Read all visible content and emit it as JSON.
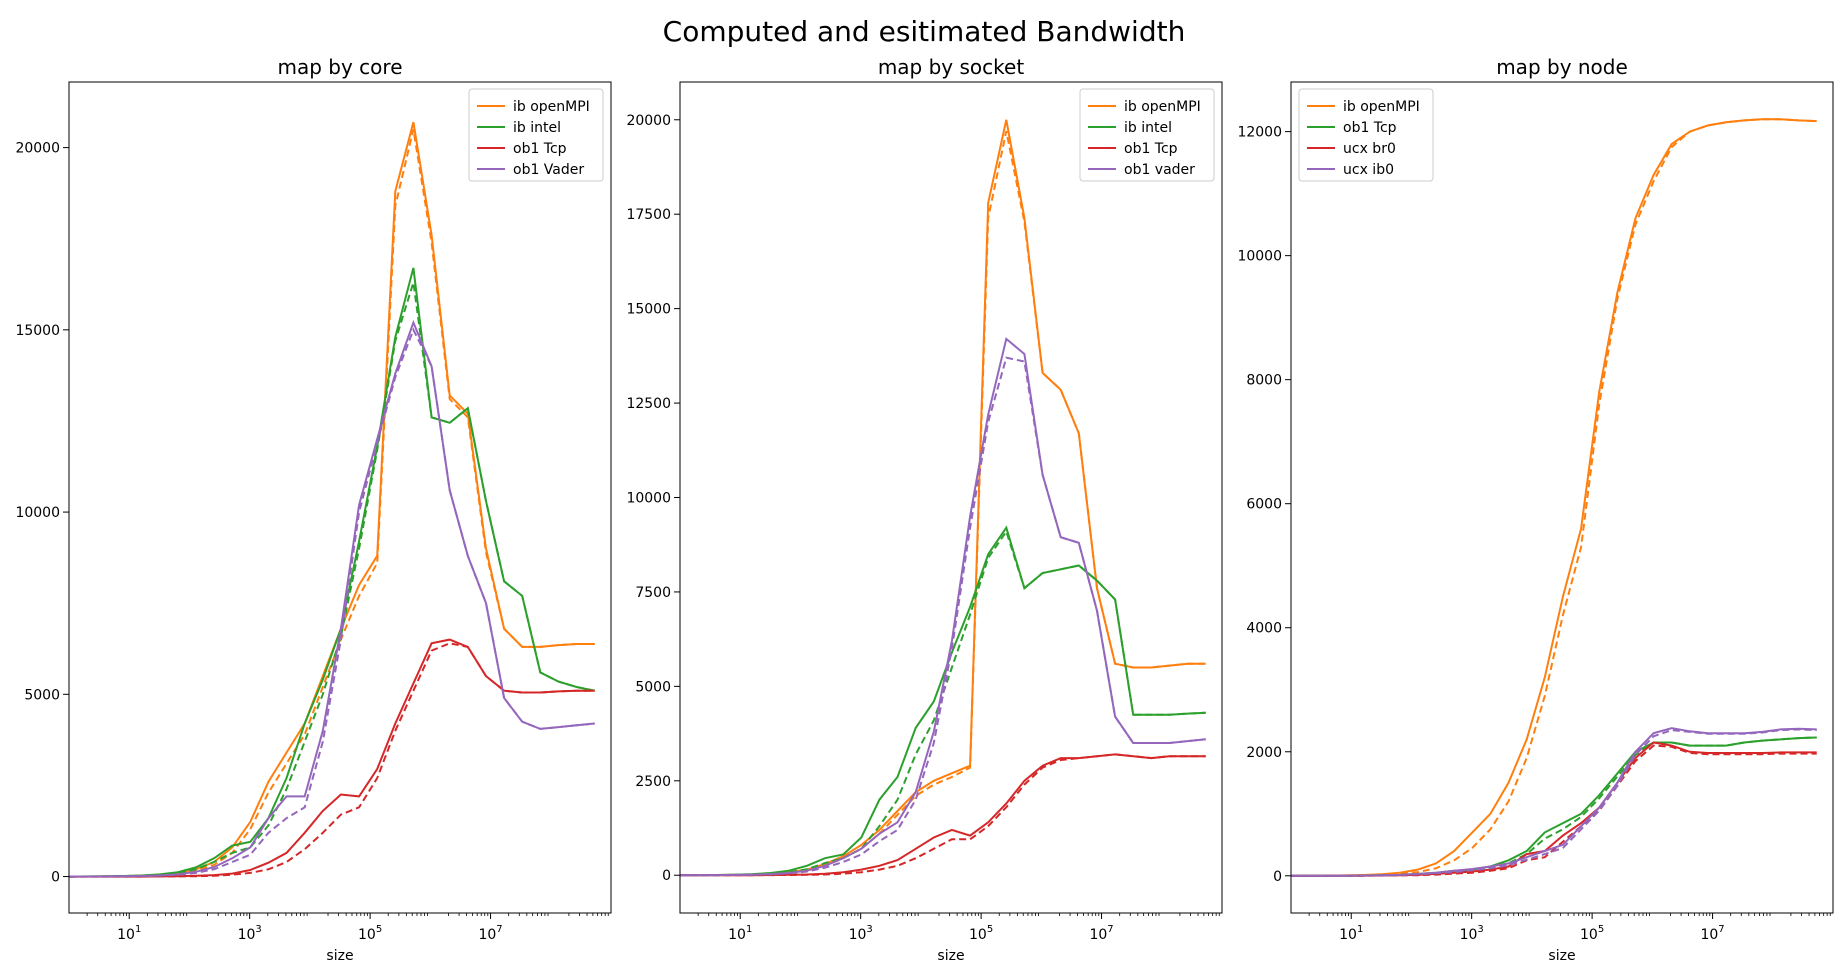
{
  "figure": {
    "title": "Computed and esitimated Bandwidth"
  },
  "chart_data": [
    {
      "type": "line",
      "title": "map by core",
      "xlabel": "size",
      "ylabel": "",
      "xscale": "log",
      "xlim": [
        1,
        1000000000
      ],
      "ylim": [
        -1000,
        21800
      ],
      "xticks": [
        {
          "value": 10,
          "base": "10",
          "exp": "1"
        },
        {
          "value": 1000,
          "base": "10",
          "exp": "3"
        },
        {
          "value": 100000,
          "base": "10",
          "exp": "5"
        },
        {
          "value": 10000000,
          "base": "10",
          "exp": "7"
        }
      ],
      "yticks": [
        0,
        5000,
        10000,
        15000,
        20000
      ],
      "legend_position": "top-right",
      "line_styles": "solid = computed, dashed = estimated",
      "x": [
        1,
        2,
        4,
        8,
        16,
        32,
        64,
        128,
        256,
        512,
        1024,
        2048,
        4096,
        8192,
        16384,
        32768,
        65536,
        131072,
        262144,
        524288,
        1048576,
        2097152,
        4194304,
        8388608,
        16777216,
        33554432,
        67108864,
        134217728,
        268435456,
        536870912
      ],
      "series": [
        {
          "name": "ib openMPI",
          "color": "#ff7f0e",
          "values": [
            0,
            2,
            5,
            12,
            25,
            50,
            100,
            200,
            400,
            800,
            1500,
            2600,
            3400,
            4200,
            5500,
            6800,
            8000,
            8800,
            18800,
            20700,
            17600,
            13200,
            12700,
            9000,
            6800,
            6300,
            6300,
            6350,
            6380,
            6380
          ],
          "estimated": [
            0,
            2,
            4,
            10,
            20,
            40,
            80,
            160,
            320,
            650,
            1300,
            2300,
            3100,
            3900,
            5200,
            6500,
            7700,
            8600,
            18400,
            20500,
            17400,
            13100,
            12600,
            8900,
            6800,
            6300,
            6300,
            6350,
            6380,
            6380
          ]
        },
        {
          "name": "ib intel",
          "color": "#2ca02c",
          "values": [
            0,
            3,
            6,
            15,
            30,
            60,
            120,
            250,
            500,
            850,
            950,
            1600,
            2700,
            4200,
            5400,
            6800,
            9200,
            11800,
            14800,
            16700,
            12600,
            12450,
            12850,
            10300,
            8100,
            7700,
            5600,
            5350,
            5200,
            5100
          ],
          "estimated": [
            0,
            2,
            5,
            12,
            25,
            50,
            100,
            200,
            400,
            650,
            800,
            1400,
            2400,
            3700,
            5000,
            6600,
            9000,
            11700,
            14700,
            16300,
            12600,
            12450,
            12850,
            10300,
            8100,
            7700,
            5600,
            5350,
            5200,
            5100
          ]
        },
        {
          "name": "ob1 Tcp",
          "color": "#d62728",
          "values": [
            0,
            0,
            0,
            0,
            0,
            5,
            10,
            20,
            40,
            80,
            180,
            380,
            650,
            1200,
            1800,
            2250,
            2200,
            2950,
            4200,
            5300,
            6400,
            6500,
            6300,
            5500,
            5100,
            5050,
            5050,
            5080,
            5100,
            5100
          ],
          "estimated": [
            0,
            0,
            0,
            0,
            0,
            3,
            5,
            10,
            20,
            50,
            100,
            200,
            400,
            750,
            1200,
            1700,
            1900,
            2700,
            4000,
            5100,
            6200,
            6400,
            6300,
            5500,
            5100,
            5050,
            5050,
            5080,
            5100,
            5100
          ]
        },
        {
          "name": "ob1 Vader",
          "color": "#9467bd",
          "values": [
            0,
            1,
            3,
            8,
            15,
            30,
            60,
            130,
            260,
            500,
            800,
            1600,
            2200,
            2200,
            4000,
            6800,
            10200,
            12000,
            13800,
            15200,
            14000,
            10600,
            8800,
            7500,
            4900,
            4250,
            4050,
            4100,
            4150,
            4200
          ],
          "estimated": [
            0,
            1,
            2,
            6,
            12,
            25,
            50,
            100,
            200,
            400,
            600,
            1200,
            1600,
            1900,
            3700,
            6500,
            10000,
            11900,
            13700,
            15000,
            14000,
            10600,
            8800,
            7500,
            4900,
            4250,
            4050,
            4100,
            4150,
            4200
          ]
        }
      ]
    },
    {
      "type": "line",
      "title": "map by socket",
      "xlabel": "size",
      "ylabel": "",
      "xscale": "log",
      "xlim": [
        1,
        1000000000
      ],
      "ylim": [
        -1000,
        21000
      ],
      "xticks": [
        {
          "value": 10,
          "base": "10",
          "exp": "1"
        },
        {
          "value": 1000,
          "base": "10",
          "exp": "3"
        },
        {
          "value": 100000,
          "base": "10",
          "exp": "5"
        },
        {
          "value": 10000000,
          "base": "10",
          "exp": "7"
        }
      ],
      "yticks": [
        0,
        2500,
        5000,
        7500,
        10000,
        12500,
        15000,
        17500,
        20000
      ],
      "legend_position": "top-right",
      "line_styles": "solid = computed, dashed = estimated",
      "x": [
        1,
        2,
        4,
        8,
        16,
        32,
        64,
        128,
        256,
        512,
        1024,
        2048,
        4096,
        8192,
        16384,
        32768,
        65536,
        131072,
        262144,
        524288,
        1048576,
        2097152,
        4194304,
        8388608,
        16777216,
        33554432,
        67108864,
        134217728,
        268435456,
        536870912
      ],
      "series": [
        {
          "name": "ib openMPI",
          "color": "#ff7f0e",
          "values": [
            0,
            2,
            5,
            10,
            20,
            40,
            80,
            150,
            300,
            500,
            800,
            1200,
            1700,
            2200,
            2500,
            2700,
            2900,
            17800,
            20000,
            17400,
            13300,
            12850,
            11700,
            7600,
            5600,
            5500,
            5500,
            5550,
            5600,
            5600
          ],
          "estimated": [
            0,
            2,
            4,
            8,
            16,
            32,
            60,
            120,
            250,
            450,
            700,
            1100,
            1600,
            2100,
            2400,
            2600,
            2850,
            17400,
            19700,
            17300,
            13300,
            12850,
            11700,
            7600,
            5600,
            5500,
            5500,
            5550,
            5600,
            5600
          ]
        },
        {
          "name": "ib intel",
          "color": "#2ca02c",
          "values": [
            0,
            3,
            6,
            15,
            30,
            60,
            120,
            250,
            450,
            550,
            1000,
            2000,
            2600,
            3900,
            4600,
            5900,
            7100,
            8500,
            9200,
            7600,
            8000,
            8100,
            8200,
            7800,
            7300,
            4250,
            4250,
            4250,
            4280,
            4300
          ],
          "estimated": [
            0,
            2,
            4,
            10,
            20,
            40,
            80,
            160,
            320,
            450,
            700,
            1300,
            2000,
            3200,
            4100,
            5500,
            6900,
            8400,
            9100,
            7600,
            8000,
            8100,
            8200,
            7800,
            7300,
            4250,
            4250,
            4250,
            4280,
            4300
          ]
        },
        {
          "name": "ob1 Tcp",
          "color": "#d62728",
          "values": [
            0,
            0,
            0,
            0,
            0,
            5,
            10,
            20,
            40,
            80,
            150,
            250,
            400,
            700,
            1000,
            1200,
            1050,
            1400,
            1900,
            2500,
            2900,
            3100,
            3100,
            3150,
            3200,
            3150,
            3100,
            3150,
            3150,
            3150
          ],
          "estimated": [
            0,
            0,
            0,
            0,
            0,
            3,
            5,
            10,
            20,
            40,
            80,
            150,
            250,
            450,
            700,
            950,
            950,
            1300,
            1800,
            2400,
            2850,
            3050,
            3100,
            3150,
            3200,
            3150,
            3100,
            3150,
            3150,
            3150
          ],
          "estimated_note": ""
        },
        {
          "name": "ob1 vader",
          "color": "#9467bd",
          "values": [
            0,
            1,
            3,
            8,
            15,
            30,
            60,
            120,
            250,
            450,
            700,
            1100,
            1400,
            2200,
            3800,
            6200,
            9500,
            12200,
            14200,
            13800,
            10600,
            8950,
            8800,
            7000,
            4200,
            3500,
            3500,
            3500,
            3550,
            3600
          ],
          "estimated": [
            0,
            1,
            2,
            6,
            12,
            25,
            50,
            100,
            200,
            350,
            550,
            900,
            1200,
            2000,
            3500,
            6000,
            9200,
            12000,
            13700,
            13600,
            10600,
            8950,
            8800,
            7000,
            4200,
            3500,
            3500,
            3500,
            3550,
            3600
          ]
        }
      ]
    },
    {
      "type": "line",
      "title": "map by node",
      "xlabel": "size",
      "ylabel": "",
      "xscale": "log",
      "xlim": [
        1,
        1000000000
      ],
      "ylim": [
        -600,
        12800
      ],
      "xticks": [
        {
          "value": 10,
          "base": "10",
          "exp": "1"
        },
        {
          "value": 1000,
          "base": "10",
          "exp": "3"
        },
        {
          "value": 100000,
          "base": "10",
          "exp": "5"
        },
        {
          "value": 10000000,
          "base": "10",
          "exp": "7"
        }
      ],
      "yticks": [
        0,
        2000,
        4000,
        6000,
        8000,
        10000,
        12000
      ],
      "legend_position": "top-left",
      "line_styles": "solid = computed, dashed = estimated",
      "x": [
        1,
        2,
        4,
        8,
        16,
        32,
        64,
        128,
        256,
        512,
        1024,
        2048,
        4096,
        8192,
        16384,
        32768,
        65536,
        131072,
        262144,
        524288,
        1048576,
        2097152,
        4194304,
        8388608,
        16777216,
        33554432,
        67108864,
        134217728,
        268435456,
        536870912
      ],
      "series": [
        {
          "name": "ib openMPI",
          "color": "#ff7f0e",
          "values": [
            0,
            1,
            3,
            6,
            12,
            25,
            50,
            100,
            200,
            400,
            700,
            1000,
            1500,
            2200,
            3200,
            4500,
            5600,
            7800,
            9400,
            10600,
            11300,
            11800,
            12000,
            12100,
            12150,
            12180,
            12200,
            12200,
            12180,
            12170
          ],
          "estimated": [
            0,
            1,
            2,
            4,
            8,
            15,
            30,
            60,
            120,
            250,
            450,
            750,
            1200,
            1900,
            2900,
            4200,
            5300,
            7600,
            9300,
            10500,
            11200,
            11750,
            12000,
            12100,
            12150,
            12180,
            12200,
            12200,
            12180,
            12170
          ]
        },
        {
          "name": "ob1 Tcp",
          "color": "#2ca02c",
          "values": [
            0,
            0,
            1,
            2,
            4,
            8,
            15,
            30,
            50,
            80,
            100,
            150,
            250,
            400,
            700,
            850,
            1000,
            1300,
            1650,
            2000,
            2150,
            2150,
            2100,
            2100,
            2100,
            2150,
            2180,
            2200,
            2220,
            2230
          ],
          "estimated": [
            0,
            0,
            1,
            1,
            3,
            6,
            12,
            25,
            40,
            60,
            80,
            120,
            200,
            350,
            600,
            750,
            950,
            1250,
            1600,
            1950,
            2150,
            2150,
            2100,
            2100,
            2100,
            2150,
            2180,
            2200,
            2220,
            2230
          ]
        },
        {
          "name": "ucx br0",
          "color": "#d62728",
          "values": [
            0,
            0,
            0,
            1,
            2,
            4,
            8,
            15,
            30,
            50,
            70,
            100,
            150,
            350,
            400,
            650,
            850,
            1100,
            1500,
            1900,
            2150,
            2100,
            2000,
            1980,
            1980,
            1980,
            1980,
            1990,
            1990,
            1990
          ],
          "estimated": [
            0,
            0,
            0,
            1,
            1,
            3,
            6,
            10,
            20,
            35,
            50,
            80,
            120,
            250,
            300,
            550,
            800,
            1050,
            1450,
            1850,
            2100,
            2080,
            1980,
            1960,
            1960,
            1960,
            1960,
            1970,
            1970,
            1970
          ]
        },
        {
          "name": "ucx ib0",
          "color": "#9467bd",
          "values": [
            0,
            0,
            1,
            2,
            4,
            8,
            15,
            30,
            50,
            80,
            110,
            150,
            200,
            300,
            400,
            500,
            800,
            1100,
            1500,
            2000,
            2300,
            2380,
            2330,
            2300,
            2300,
            2300,
            2320,
            2360,
            2370,
            2360
          ],
          "estimated": [
            0,
            0,
            1,
            1,
            3,
            6,
            12,
            25,
            40,
            60,
            90,
            120,
            170,
            260,
            350,
            450,
            750,
            1050,
            1450,
            1950,
            2250,
            2350,
            2320,
            2290,
            2290,
            2290,
            2310,
            2350,
            2360,
            2350
          ]
        }
      ]
    }
  ]
}
